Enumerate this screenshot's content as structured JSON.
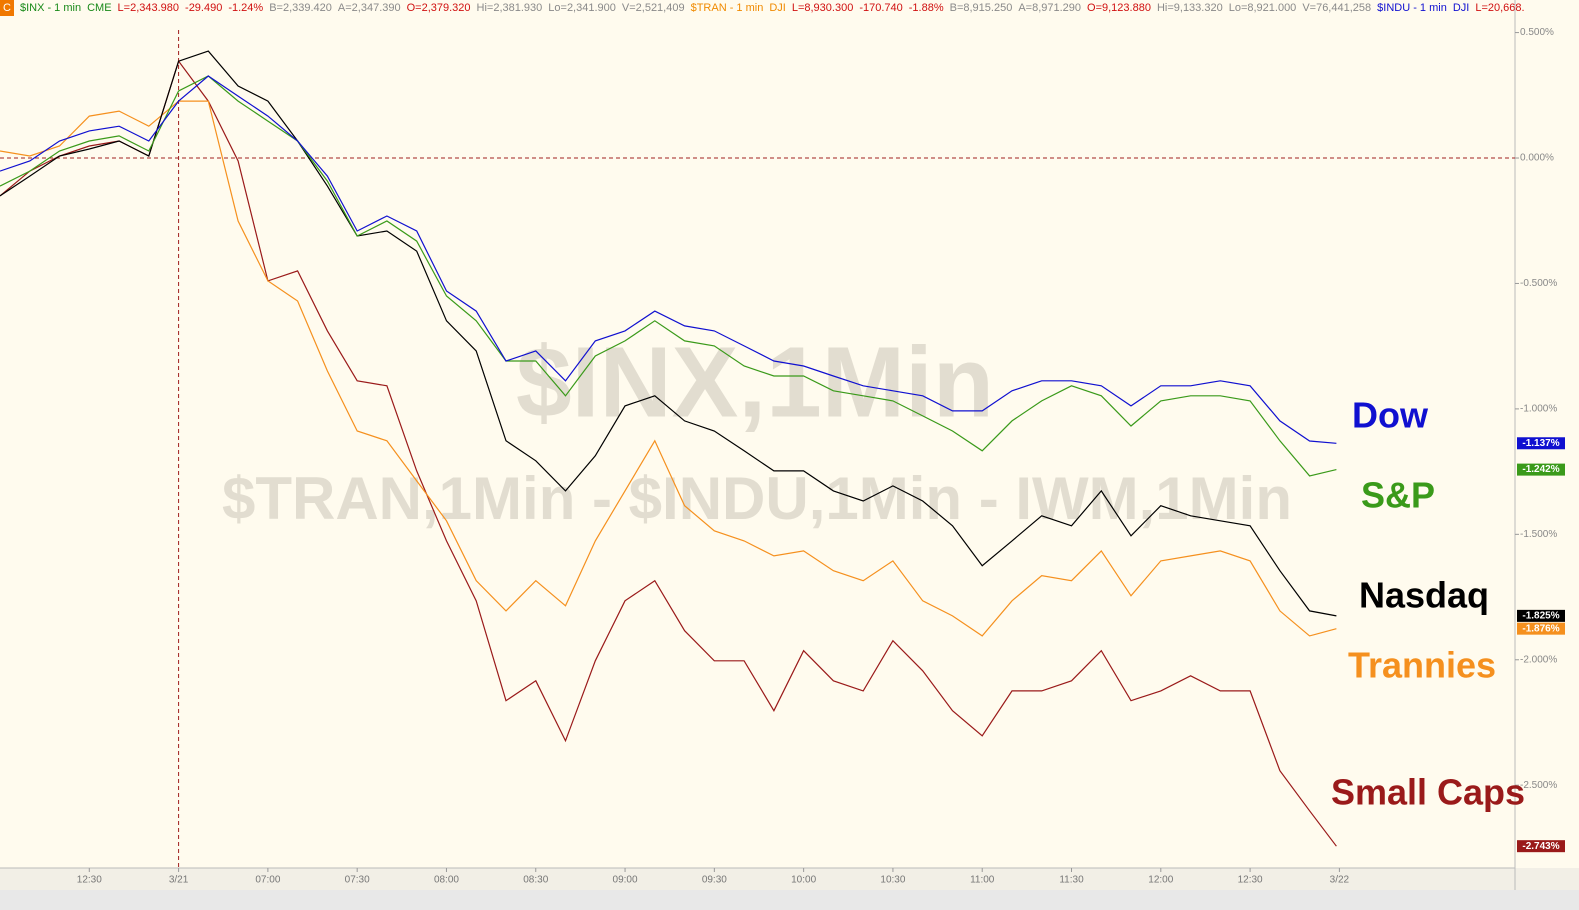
{
  "header": {
    "badge": "C",
    "items": [
      {
        "text": "$INX - 1 min",
        "color": "#1a8a1a"
      },
      {
        "text": "CME",
        "color": "#1a8a1a"
      },
      {
        "text": "L=2,343.980",
        "color": "#d01010"
      },
      {
        "text": "-29.490",
        "color": "#d01010"
      },
      {
        "text": "-1.24%",
        "color": "#d01010"
      },
      {
        "text": "B=2,339.420",
        "color": "#8a8a8a"
      },
      {
        "text": "A=2,347.390",
        "color": "#8a8a8a"
      },
      {
        "text": "O=2,379.320",
        "color": "#d01010"
      },
      {
        "text": "Hi=2,381.930",
        "color": "#8a8a8a"
      },
      {
        "text": "Lo=2,341.900",
        "color": "#8a8a8a"
      },
      {
        "text": "V=2,521,409",
        "color": "#8a8a8a"
      },
      {
        "text": "$TRAN - 1 min",
        "color": "#f08a00"
      },
      {
        "text": "DJI",
        "color": "#f08a00"
      },
      {
        "text": "L=8,930.300",
        "color": "#d01010"
      },
      {
        "text": "-170.740",
        "color": "#d01010"
      },
      {
        "text": "-1.88%",
        "color": "#d01010"
      },
      {
        "text": "B=8,915.250",
        "color": "#8a8a8a"
      },
      {
        "text": "A=8,971.290",
        "color": "#8a8a8a"
      },
      {
        "text": "O=9,123.880",
        "color": "#d01010"
      },
      {
        "text": "Hi=9,133.320",
        "color": "#8a8a8a"
      },
      {
        "text": "Lo=8,921.000",
        "color": "#8a8a8a"
      },
      {
        "text": "V=76,441,258",
        "color": "#8a8a8a"
      },
      {
        "text": "$INDU - 1 min",
        "color": "#1010d0"
      },
      {
        "text": "DJI",
        "color": "#1010d0"
      },
      {
        "text": "L=20,668.",
        "color": "#d01010"
      }
    ]
  },
  "chart_data": {
    "type": "line",
    "watermarks": [
      "$INX,1Min",
      "$TRAN,1Min - $INDU,1Min - IWM,1Min"
    ],
    "x": [
      0,
      10,
      20,
      30,
      40,
      50,
      60,
      70,
      80,
      90,
      100,
      110,
      120,
      130,
      140,
      150,
      160,
      170,
      180,
      190,
      200,
      210,
      220,
      230,
      240,
      250,
      260,
      270,
      280,
      290,
      300,
      310,
      320,
      330,
      340,
      350,
      360,
      370,
      380,
      390,
      400,
      410,
      420,
      430,
      440,
      449
    ],
    "xlim": [
      0,
      509
    ],
    "xticks": [
      {
        "value": 30,
        "label": "12:30"
      },
      {
        "value": 60,
        "label": "3/21"
      },
      {
        "value": 90,
        "label": "07:00"
      },
      {
        "value": 120,
        "label": "07:30"
      },
      {
        "value": 150,
        "label": "08:00"
      },
      {
        "value": 180,
        "label": "08:30"
      },
      {
        "value": 210,
        "label": "09:00"
      },
      {
        "value": 240,
        "label": "09:30"
      },
      {
        "value": 270,
        "label": "10:00"
      },
      {
        "value": 300,
        "label": "10:30"
      },
      {
        "value": 330,
        "label": "11:00"
      },
      {
        "value": 360,
        "label": "11:30"
      },
      {
        "value": 390,
        "label": "12:00"
      },
      {
        "value": 420,
        "label": "12:30"
      },
      {
        "value": 450,
        "label": "3/22"
      }
    ],
    "ylim": [
      -2.83,
      0.59
    ],
    "yticks": [
      {
        "value": 0.5,
        "label": "0.500%"
      },
      {
        "value": 0,
        "label": "0.000%"
      },
      {
        "value": -0.5,
        "label": "-0.500%"
      },
      {
        "value": -1,
        "label": "-1.000%"
      },
      {
        "value": -1.5,
        "label": "-1.500%"
      },
      {
        "value": -2,
        "label": "-2.000%"
      },
      {
        "value": -2.5,
        "label": "-2.500%"
      }
    ],
    "series": [
      {
        "name": "Dow",
        "color": "#1010d0",
        "end_label": {
          "value": -1.137,
          "label": "-1.137%"
        },
        "values": [
          -0.052,
          -0.012,
          0.068,
          0.108,
          0.127,
          0.068,
          0.227,
          0.327,
          0.247,
          0.167,
          0.068,
          -0.072,
          -0.291,
          -0.231,
          -0.291,
          -0.53,
          -0.61,
          -0.809,
          -0.769,
          -0.888,
          -0.729,
          -0.689,
          -0.61,
          -0.669,
          -0.689,
          -0.749,
          -0.809,
          -0.829,
          -0.869,
          -0.908,
          -0.928,
          -0.948,
          -1.008,
          -1.008,
          -0.928,
          -0.888,
          -0.888,
          -0.908,
          -0.988,
          -0.908,
          -0.908,
          -0.888,
          -0.908,
          -1.048,
          -1.128,
          -1.137
        ]
      },
      {
        "name": "S&P",
        "color": "#3a9a1a",
        "end_label": {
          "value": -1.242,
          "label": "-1.242%"
        },
        "values": [
          -0.112,
          -0.052,
          0.028,
          0.068,
          0.088,
          0.028,
          0.267,
          0.327,
          0.227,
          0.147,
          0.068,
          -0.092,
          -0.311,
          -0.251,
          -0.331,
          -0.55,
          -0.649,
          -0.809,
          -0.809,
          -0.948,
          -0.789,
          -0.729,
          -0.649,
          -0.729,
          -0.749,
          -0.829,
          -0.869,
          -0.869,
          -0.928,
          -0.948,
          -0.968,
          -1.028,
          -1.088,
          -1.167,
          -1.048,
          -0.968,
          -0.908,
          -0.948,
          -1.068,
          -0.968,
          -0.948,
          -0.948,
          -0.968,
          -1.127,
          -1.267,
          -1.242
        ]
      },
      {
        "name": "Nasdaq",
        "color": "#000000",
        "end_label": {
          "value": -1.825,
          "label": "-1.825%"
        },
        "values": [
          -0.151,
          -0.072,
          0.008,
          0.036,
          0.068,
          0.008,
          0.386,
          0.426,
          0.287,
          0.227,
          0.068,
          -0.112,
          -0.311,
          -0.291,
          -0.371,
          -0.649,
          -0.769,
          -1.127,
          -1.207,
          -1.327,
          -1.187,
          -0.988,
          -0.948,
          -1.048,
          -1.088,
          -1.167,
          -1.247,
          -1.247,
          -1.327,
          -1.367,
          -1.307,
          -1.367,
          -1.466,
          -1.625,
          -1.526,
          -1.426,
          -1.466,
          -1.327,
          -1.506,
          -1.386,
          -1.426,
          -1.446,
          -1.466,
          -1.645,
          -1.805,
          -1.825
        ]
      },
      {
        "name": "Trannies",
        "color": "#f5901e",
        "end_label": {
          "value": -1.876,
          "label": "-1.876%"
        },
        "values": [
          0.028,
          0.008,
          0.048,
          0.167,
          0.187,
          0.127,
          0.227,
          0.227,
          -0.251,
          -0.49,
          -0.57,
          -0.849,
          -1.088,
          -1.127,
          -1.287,
          -1.446,
          -1.685,
          -1.805,
          -1.685,
          -1.785,
          -1.526,
          -1.327,
          -1.127,
          -1.386,
          -1.486,
          -1.526,
          -1.586,
          -1.566,
          -1.645,
          -1.685,
          -1.606,
          -1.765,
          -1.825,
          -1.905,
          -1.765,
          -1.665,
          -1.685,
          -1.566,
          -1.745,
          -1.606,
          -1.586,
          -1.566,
          -1.606,
          -1.805,
          -1.905,
          -1.876
        ]
      },
      {
        "name": "Small Caps",
        "color": "#9a1a1a",
        "end_label": {
          "value": -2.743,
          "label": "-2.743%"
        },
        "values": [
          -0.151,
          -0.052,
          0.008,
          0.048,
          0.068,
          0.008,
          0.386,
          0.227,
          -0.012,
          -0.49,
          -0.45,
          -0.689,
          -0.888,
          -0.908,
          -1.247,
          -1.526,
          -1.765,
          -2.163,
          -2.084,
          -2.323,
          -2.004,
          -1.765,
          -1.685,
          -1.884,
          -2.004,
          -2.004,
          -2.203,
          -1.964,
          -2.084,
          -2.124,
          -1.924,
          -2.044,
          -2.203,
          -2.303,
          -2.124,
          -2.124,
          -2.084,
          -1.964,
          -2.163,
          -2.124,
          -2.064,
          -2.124,
          -2.124,
          -2.442,
          -2.602,
          -2.743
        ]
      }
    ]
  }
}
